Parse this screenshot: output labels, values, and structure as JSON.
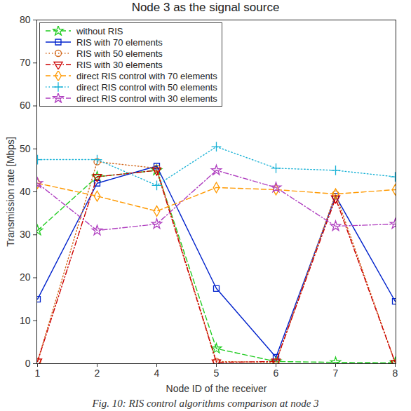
{
  "chart_data": {
    "type": "line",
    "title": "Node 3 as the signal source",
    "caption": "Fig. 10: RIS control algorithms comparison at node 3",
    "x_label": "Node ID of the receiver",
    "y_label": "Transmission rate [Mbps]",
    "categories": [
      "1",
      "2",
      "4",
      "5",
      "6",
      "7",
      "8"
    ],
    "ylim": [
      0,
      80
    ],
    "yticks": [
      0,
      10,
      20,
      30,
      40,
      50,
      60,
      70,
      80
    ],
    "grid": false,
    "legend": "top-left",
    "series": [
      {
        "name": "without RIS",
        "color": "#22cc22",
        "marker": "star",
        "line_style": "dashed",
        "values": [
          31,
          43.5,
          45,
          3.5,
          0.5,
          0.3,
          0.2
        ]
      },
      {
        "name": "RIS with 70 elements",
        "color": "#0022cc",
        "marker": "square",
        "line_style": "solid",
        "values": [
          15,
          42,
          46,
          17.5,
          1.5,
          39,
          14.5
        ]
      },
      {
        "name": "RIS with 50 elements",
        "color": "#d2691e",
        "marker": "circle",
        "line_style": "dotted",
        "values": [
          0.5,
          47,
          45.5,
          0.5,
          0.3,
          39.5,
          0.2
        ]
      },
      {
        "name": "RIS with 30 elements",
        "color": "#cc0000",
        "marker": "triangle-down",
        "line_style": "dashdot",
        "values": [
          0.5,
          43.5,
          45,
          0.3,
          0.5,
          38.5,
          0.2
        ]
      },
      {
        "name": "direct RIS control with 70 elements",
        "color": "#ff9900",
        "marker": "diamond",
        "line_style": "dashed",
        "values": [
          42,
          39,
          35.5,
          41,
          40.5,
          39.5,
          40.5
        ]
      },
      {
        "name": "direct RIS control with 50 elements",
        "color": "#1ab2d6",
        "marker": "plus",
        "line_style": "dotted",
        "values": [
          47.5,
          47.5,
          41.5,
          50.5,
          45.5,
          45,
          43.5
        ]
      },
      {
        "name": "direct RIS control with 30 elements",
        "color": "#b040c0",
        "marker": "hexagram",
        "line_style": "dashdot",
        "values": [
          42,
          31,
          32.5,
          45,
          41,
          32,
          32.5
        ]
      }
    ]
  }
}
